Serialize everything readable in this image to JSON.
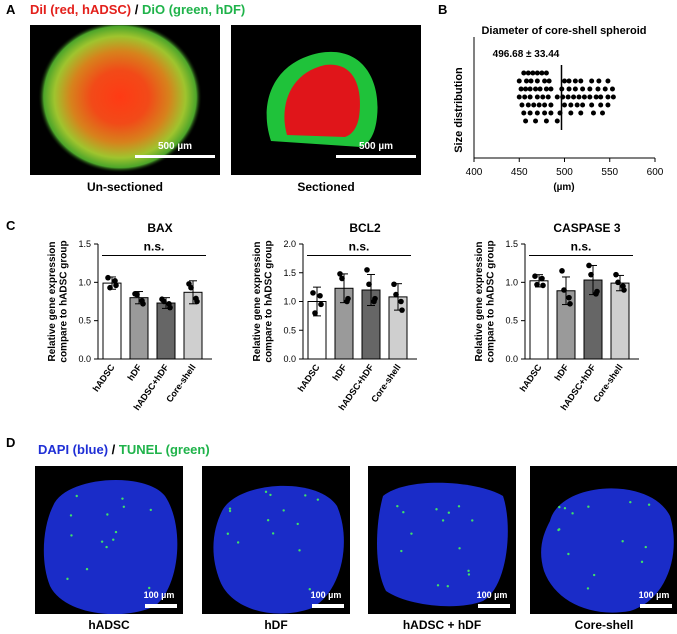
{
  "panelA": {
    "label": "A",
    "legend_red": "DiI (red, hADSC)",
    "legend_sep": " / ",
    "legend_green": "DiO (green, hDF)",
    "scale": "500 µm",
    "captions": [
      "Un-sectioned",
      "Sectioned"
    ]
  },
  "panelB": {
    "label": "B"
  },
  "panelC": {
    "label": "C"
  },
  "panelD": {
    "label": "D",
    "legend_blue": "DAPI (blue)",
    "legend_sep": " / ",
    "legend_green": "TUNEL (green)",
    "scale": "100 µm",
    "captions": [
      "hADSC",
      "hDF",
      "hADSC + hDF",
      "Core-shell"
    ]
  },
  "colors": {
    "red": "#e3201b",
    "green": "#1fb34a",
    "blue": "#1f2fd6"
  },
  "chart_data": [
    {
      "type": "scatter",
      "title": "Diameter of core-shell spheroid",
      "annotation": "496.68 ± 33.44",
      "xlabel": "(µm)",
      "ylabel": "Size distribution",
      "xlim": [
        400,
        600
      ],
      "xticks": [
        "400",
        "450",
        "500",
        "550",
        "600"
      ],
      "mean_line": 496.68,
      "rows": [
        [
          455,
          460,
          465,
          470,
          475,
          480
        ],
        [
          450,
          458,
          463,
          470,
          478,
          483,
          500,
          505,
          512,
          518,
          530,
          538,
          548
        ],
        [
          452,
          457,
          462,
          468,
          473,
          480,
          485,
          497,
          505,
          512,
          520,
          528,
          537,
          545,
          553
        ],
        [
          450,
          456,
          462,
          470,
          476,
          482,
          492,
          498,
          504,
          510,
          516,
          522,
          528,
          535,
          540,
          548,
          554
        ],
        [
          453,
          460,
          466,
          472,
          478,
          485,
          500,
          507,
          514,
          520,
          530,
          540,
          548
        ],
        [
          455,
          462,
          470,
          478,
          485,
          495,
          507,
          518,
          532,
          542
        ],
        [
          457,
          468,
          480,
          492
        ]
      ]
    },
    {
      "type": "bar",
      "title": "BAX",
      "ylabel": "Relative gene expression compare to hADSC group",
      "categories": [
        "hADSC",
        "hDF",
        "hADSC+hDF",
        "Core-shell"
      ],
      "values": [
        0.99,
        0.8,
        0.73,
        0.87
      ],
      "errors": [
        0.08,
        0.08,
        0.07,
        0.15
      ],
      "points": [
        [
          1.06,
          0.96,
          0.93,
          1.02
        ],
        [
          0.85,
          0.72,
          0.84,
          0.76
        ],
        [
          0.78,
          0.67,
          0.75,
          0.72
        ],
        [
          0.98,
          0.75,
          0.93,
          0.79
        ]
      ],
      "fills": [
        "#ffffff",
        "#9a9a9a",
        "#666666",
        "#cfcfcf"
      ],
      "ylim": [
        0,
        1.5
      ],
      "yticks": [
        "0.0",
        "0.5",
        "1.0",
        "1.5"
      ],
      "annotation": "n.s."
    },
    {
      "type": "bar",
      "title": "BCL2",
      "ylabel": "Relative gene expression compare to hADSC group",
      "categories": [
        "hADSC",
        "hDF",
        "hADSC+hDF",
        "Core-shell"
      ],
      "values": [
        1.0,
        1.23,
        1.2,
        1.08
      ],
      "errors": [
        0.25,
        0.25,
        0.27,
        0.23
      ],
      "points": [
        [
          1.15,
          0.95,
          0.8,
          1.1
        ],
        [
          1.48,
          1.05,
          1.4,
          1.0
        ],
        [
          1.55,
          1.05,
          1.3,
          1.0
        ],
        [
          1.3,
          0.85,
          1.12,
          1.0
        ]
      ],
      "fills": [
        "#ffffff",
        "#9a9a9a",
        "#666666",
        "#cfcfcf"
      ],
      "ylim": [
        0,
        2.0
      ],
      "yticks": [
        "0.0",
        "0.5",
        "1.0",
        "1.5",
        "2.0"
      ],
      "annotation": "n.s."
    },
    {
      "type": "bar",
      "title": "CASPASE 3",
      "ylabel": "Relative gene expression compare to hADSC group",
      "categories": [
        "hADSC",
        "hDF",
        "hADSC+hDF",
        "Core-shell"
      ],
      "values": [
        1.02,
        0.89,
        1.03,
        0.99
      ],
      "errors": [
        0.08,
        0.18,
        0.19,
        0.1
      ],
      "points": [
        [
          1.08,
          0.96,
          0.97,
          1.05
        ],
        [
          1.15,
          0.72,
          0.9,
          0.8
        ],
        [
          1.22,
          0.88,
          1.1,
          0.85
        ],
        [
          1.1,
          0.9,
          1.0,
          0.95
        ]
      ],
      "fills": [
        "#ffffff",
        "#9a9a9a",
        "#666666",
        "#cfcfcf"
      ],
      "ylim": [
        0,
        1.5
      ],
      "yticks": [
        "0.0",
        "0.5",
        "1.0",
        "1.5"
      ],
      "annotation": "n.s."
    }
  ]
}
